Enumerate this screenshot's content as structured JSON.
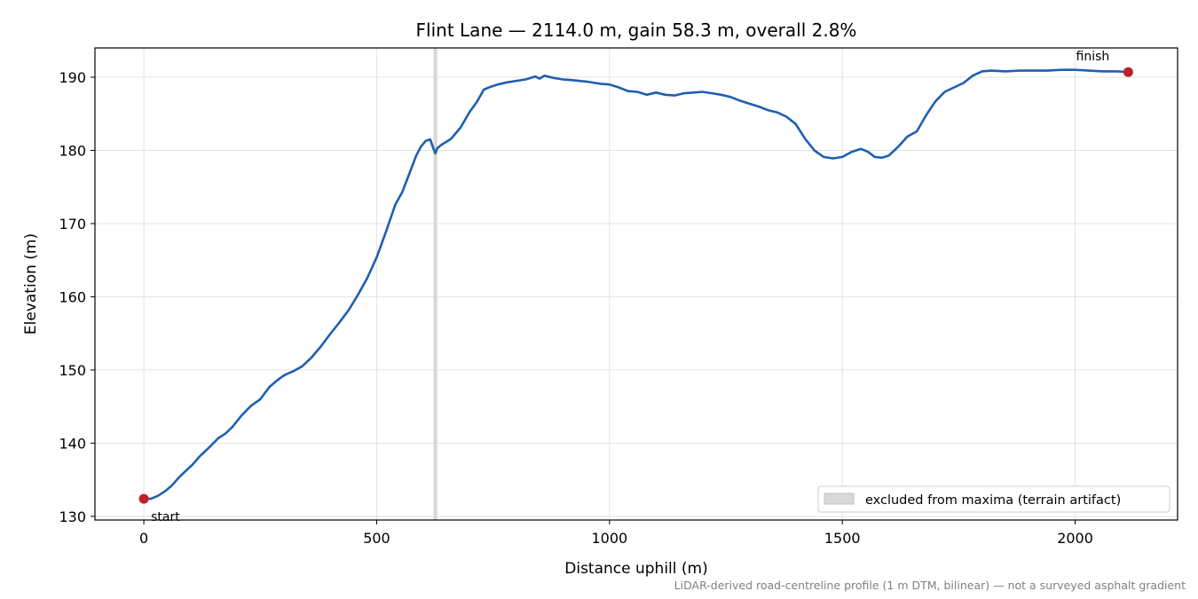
{
  "chart_data": {
    "type": "line",
    "title": "Flint Lane — 2114.0 m, gain 58.3 m, overall 2.8%",
    "xlabel": "Distance uphill (m)",
    "ylabel": "Elevation (m)",
    "xlim": [
      -105,
      2220
    ],
    "ylim": [
      129.5,
      194
    ],
    "x_ticks": [
      0,
      500,
      1000,
      1500,
      2000
    ],
    "y_ticks": [
      130,
      140,
      150,
      160,
      170,
      180,
      190
    ],
    "grid": true,
    "legend_position": "lower-right",
    "legend": [
      "excluded from maxima (terrain artifact)"
    ],
    "excluded_band": [
      622,
      630
    ],
    "series": [
      {
        "color": "#1f5fb0",
        "x": [
          0,
          15,
          30,
          45,
          60,
          75,
          90,
          105,
          120,
          140,
          160,
          175,
          190,
          210,
          230,
          250,
          270,
          285,
          295,
          305,
          320,
          340,
          360,
          380,
          400,
          420,
          440,
          460,
          480,
          500,
          520,
          540,
          555,
          570,
          585,
          595,
          605,
          615,
          622,
          626,
          630,
          640,
          660,
          680,
          700,
          715,
          730,
          745,
          760,
          780,
          800,
          820,
          840,
          850,
          860,
          880,
          900,
          920,
          950,
          980,
          1000,
          1020,
          1040,
          1060,
          1080,
          1100,
          1120,
          1140,
          1160,
          1180,
          1200,
          1220,
          1240,
          1260,
          1280,
          1300,
          1320,
          1340,
          1360,
          1380,
          1400,
          1420,
          1440,
          1460,
          1480,
          1500,
          1520,
          1540,
          1555,
          1570,
          1585,
          1600,
          1620,
          1640,
          1660,
          1680,
          1700,
          1720,
          1740,
          1760,
          1780,
          1800,
          1820,
          1850,
          1880,
          1910,
          1940,
          1970,
          2000,
          2030,
          2060,
          2090,
          2114
        ],
        "y": [
          132.4,
          132.4,
          132.8,
          133.4,
          134.2,
          135.3,
          136.2,
          137.1,
          138.2,
          139.4,
          140.7,
          141.3,
          142.2,
          143.8,
          145.1,
          146.0,
          147.7,
          148.5,
          149.0,
          149.4,
          149.8,
          150.5,
          151.7,
          153.2,
          154.9,
          156.5,
          158.2,
          160.3,
          162.6,
          165.4,
          168.9,
          172.6,
          174.3,
          176.8,
          179.3,
          180.5,
          181.3,
          181.5,
          180.2,
          179.6,
          180.3,
          180.8,
          181.6,
          183.1,
          185.3,
          186.6,
          188.3,
          188.7,
          189.0,
          189.3,
          189.5,
          189.7,
          190.1,
          189.8,
          190.2,
          189.9,
          189.7,
          189.6,
          189.4,
          189.1,
          189.0,
          188.6,
          188.1,
          188.0,
          187.6,
          187.9,
          187.6,
          187.5,
          187.8,
          187.9,
          188.0,
          187.8,
          187.6,
          187.3,
          186.8,
          186.4,
          186.0,
          185.5,
          185.2,
          184.6,
          183.6,
          181.6,
          180.0,
          179.1,
          178.9,
          179.1,
          179.8,
          180.2,
          179.8,
          179.1,
          179.0,
          179.3,
          180.5,
          181.9,
          182.6,
          184.8,
          186.7,
          188.0,
          188.6,
          189.2,
          190.2,
          190.8,
          190.9,
          190.8,
          190.9,
          190.9,
          190.9,
          191.0,
          191.0,
          190.9,
          190.8,
          190.8,
          190.7
        ]
      }
    ],
    "markers": [
      {
        "label": "start",
        "x": 0,
        "y": 132.4,
        "color": "#c0202a"
      },
      {
        "label": "finish",
        "x": 2114,
        "y": 190.7,
        "color": "#c0202a"
      }
    ],
    "footnote": "LiDAR-derived road-centreline profile (1 m DTM, bilinear) — not a surveyed asphalt gradient"
  }
}
